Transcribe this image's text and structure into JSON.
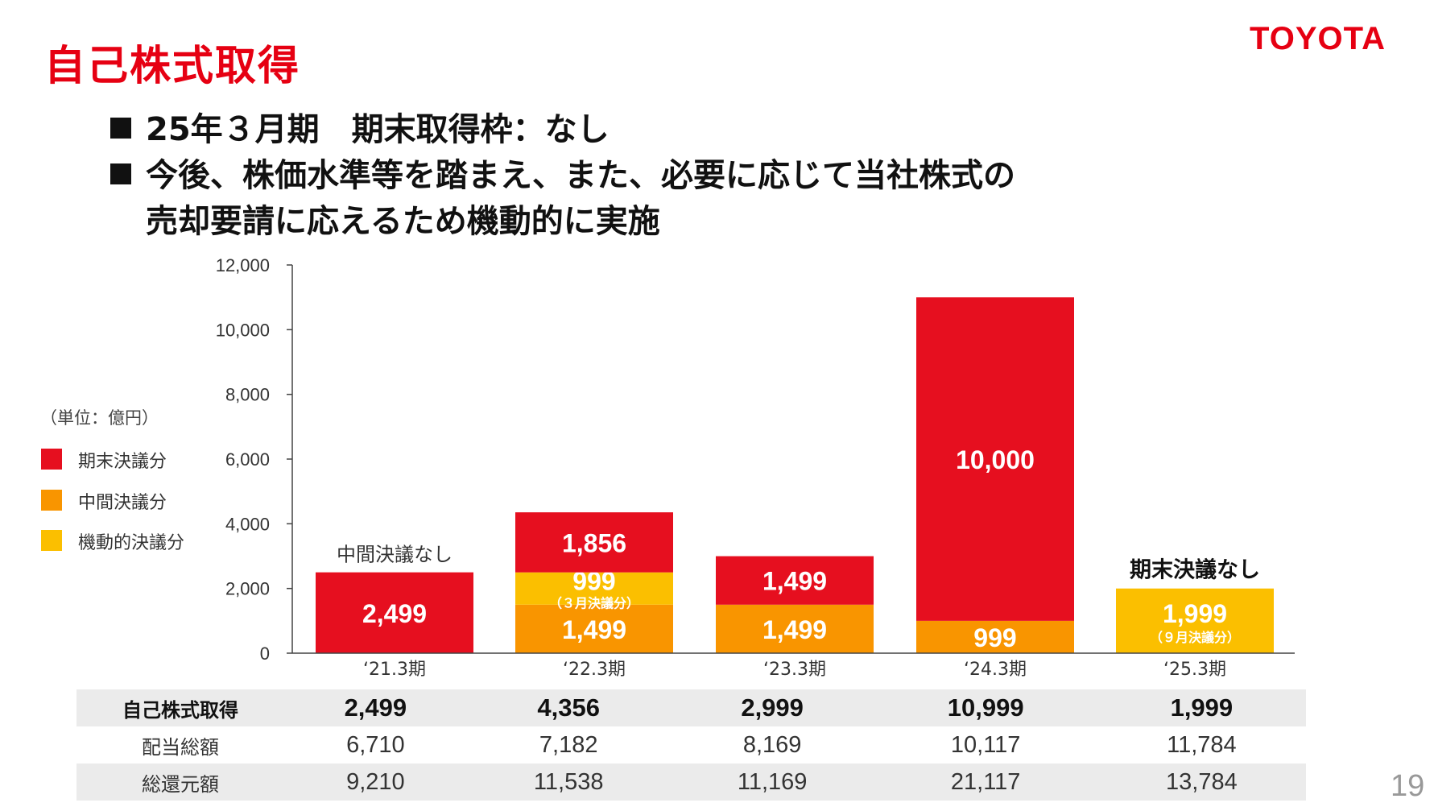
{
  "header": {
    "title": "自己株式取得",
    "logo": "TOYOTA"
  },
  "bullets": [
    "25年３月期　期末取得枠：なし",
    "今後、株価水準等を踏まえ、また、必要に応じて当社株式の",
    "売却要請に応えるため機動的に実施"
  ],
  "legend": {
    "unit": "（単位：億円）",
    "items": [
      {
        "label": "期末決議分",
        "color": "#e60f1f"
      },
      {
        "label": "中間決議分",
        "color": "#f99500"
      },
      {
        "label": "機動的決議分",
        "color": "#fbbf00"
      }
    ]
  },
  "chart_data": {
    "type": "bar",
    "stacked": true,
    "categories": [
      "‘21.3期",
      "‘22.3期",
      "‘23.3期",
      "‘24.3期",
      "‘25.3期"
    ],
    "ylim": [
      0,
      12000
    ],
    "yticks": [
      "0",
      "2,000",
      "4,000",
      "6,000",
      "8,000",
      "10,000",
      "12,000"
    ],
    "series": [
      {
        "name": "中間決議分",
        "color": "#f99500",
        "values": [
          0,
          1499,
          1499,
          999,
          0
        ],
        "labels": [
          "",
          "1,499",
          "1,499",
          "999",
          ""
        ]
      },
      {
        "name": "機動的決議分",
        "color": "#fbbf00",
        "values": [
          0,
          999,
          0,
          0,
          1999
        ],
        "labels": [
          "",
          "999",
          "",
          "",
          "1,999"
        ],
        "sublabels": [
          "",
          "（３月決議分）",
          "",
          "",
          "（９月決議分）"
        ]
      },
      {
        "name": "期末決議分",
        "color": "#e60f1f",
        "values": [
          2499,
          1856,
          1499,
          10000,
          0
        ],
        "labels": [
          "2,499",
          "1,856",
          "1,499",
          "10,000",
          ""
        ]
      }
    ],
    "annotations": [
      {
        "category": "‘21.3期",
        "text": "中間決議なし"
      },
      {
        "category": "‘25.3期",
        "text": "期末決議なし"
      }
    ]
  },
  "table": {
    "rows": [
      {
        "label": "自己株式取得",
        "values": [
          "2,499",
          "4,356",
          "2,999",
          "10,999",
          "1,999"
        ]
      },
      {
        "label": "配当総額",
        "values": [
          "6,710",
          "7,182",
          "8,169",
          "10,117",
          "11,784"
        ]
      },
      {
        "label": "総還元額",
        "values": [
          "9,210",
          "11,538",
          "11,169",
          "21,117",
          "13,784"
        ]
      }
    ]
  },
  "page_number": "19"
}
